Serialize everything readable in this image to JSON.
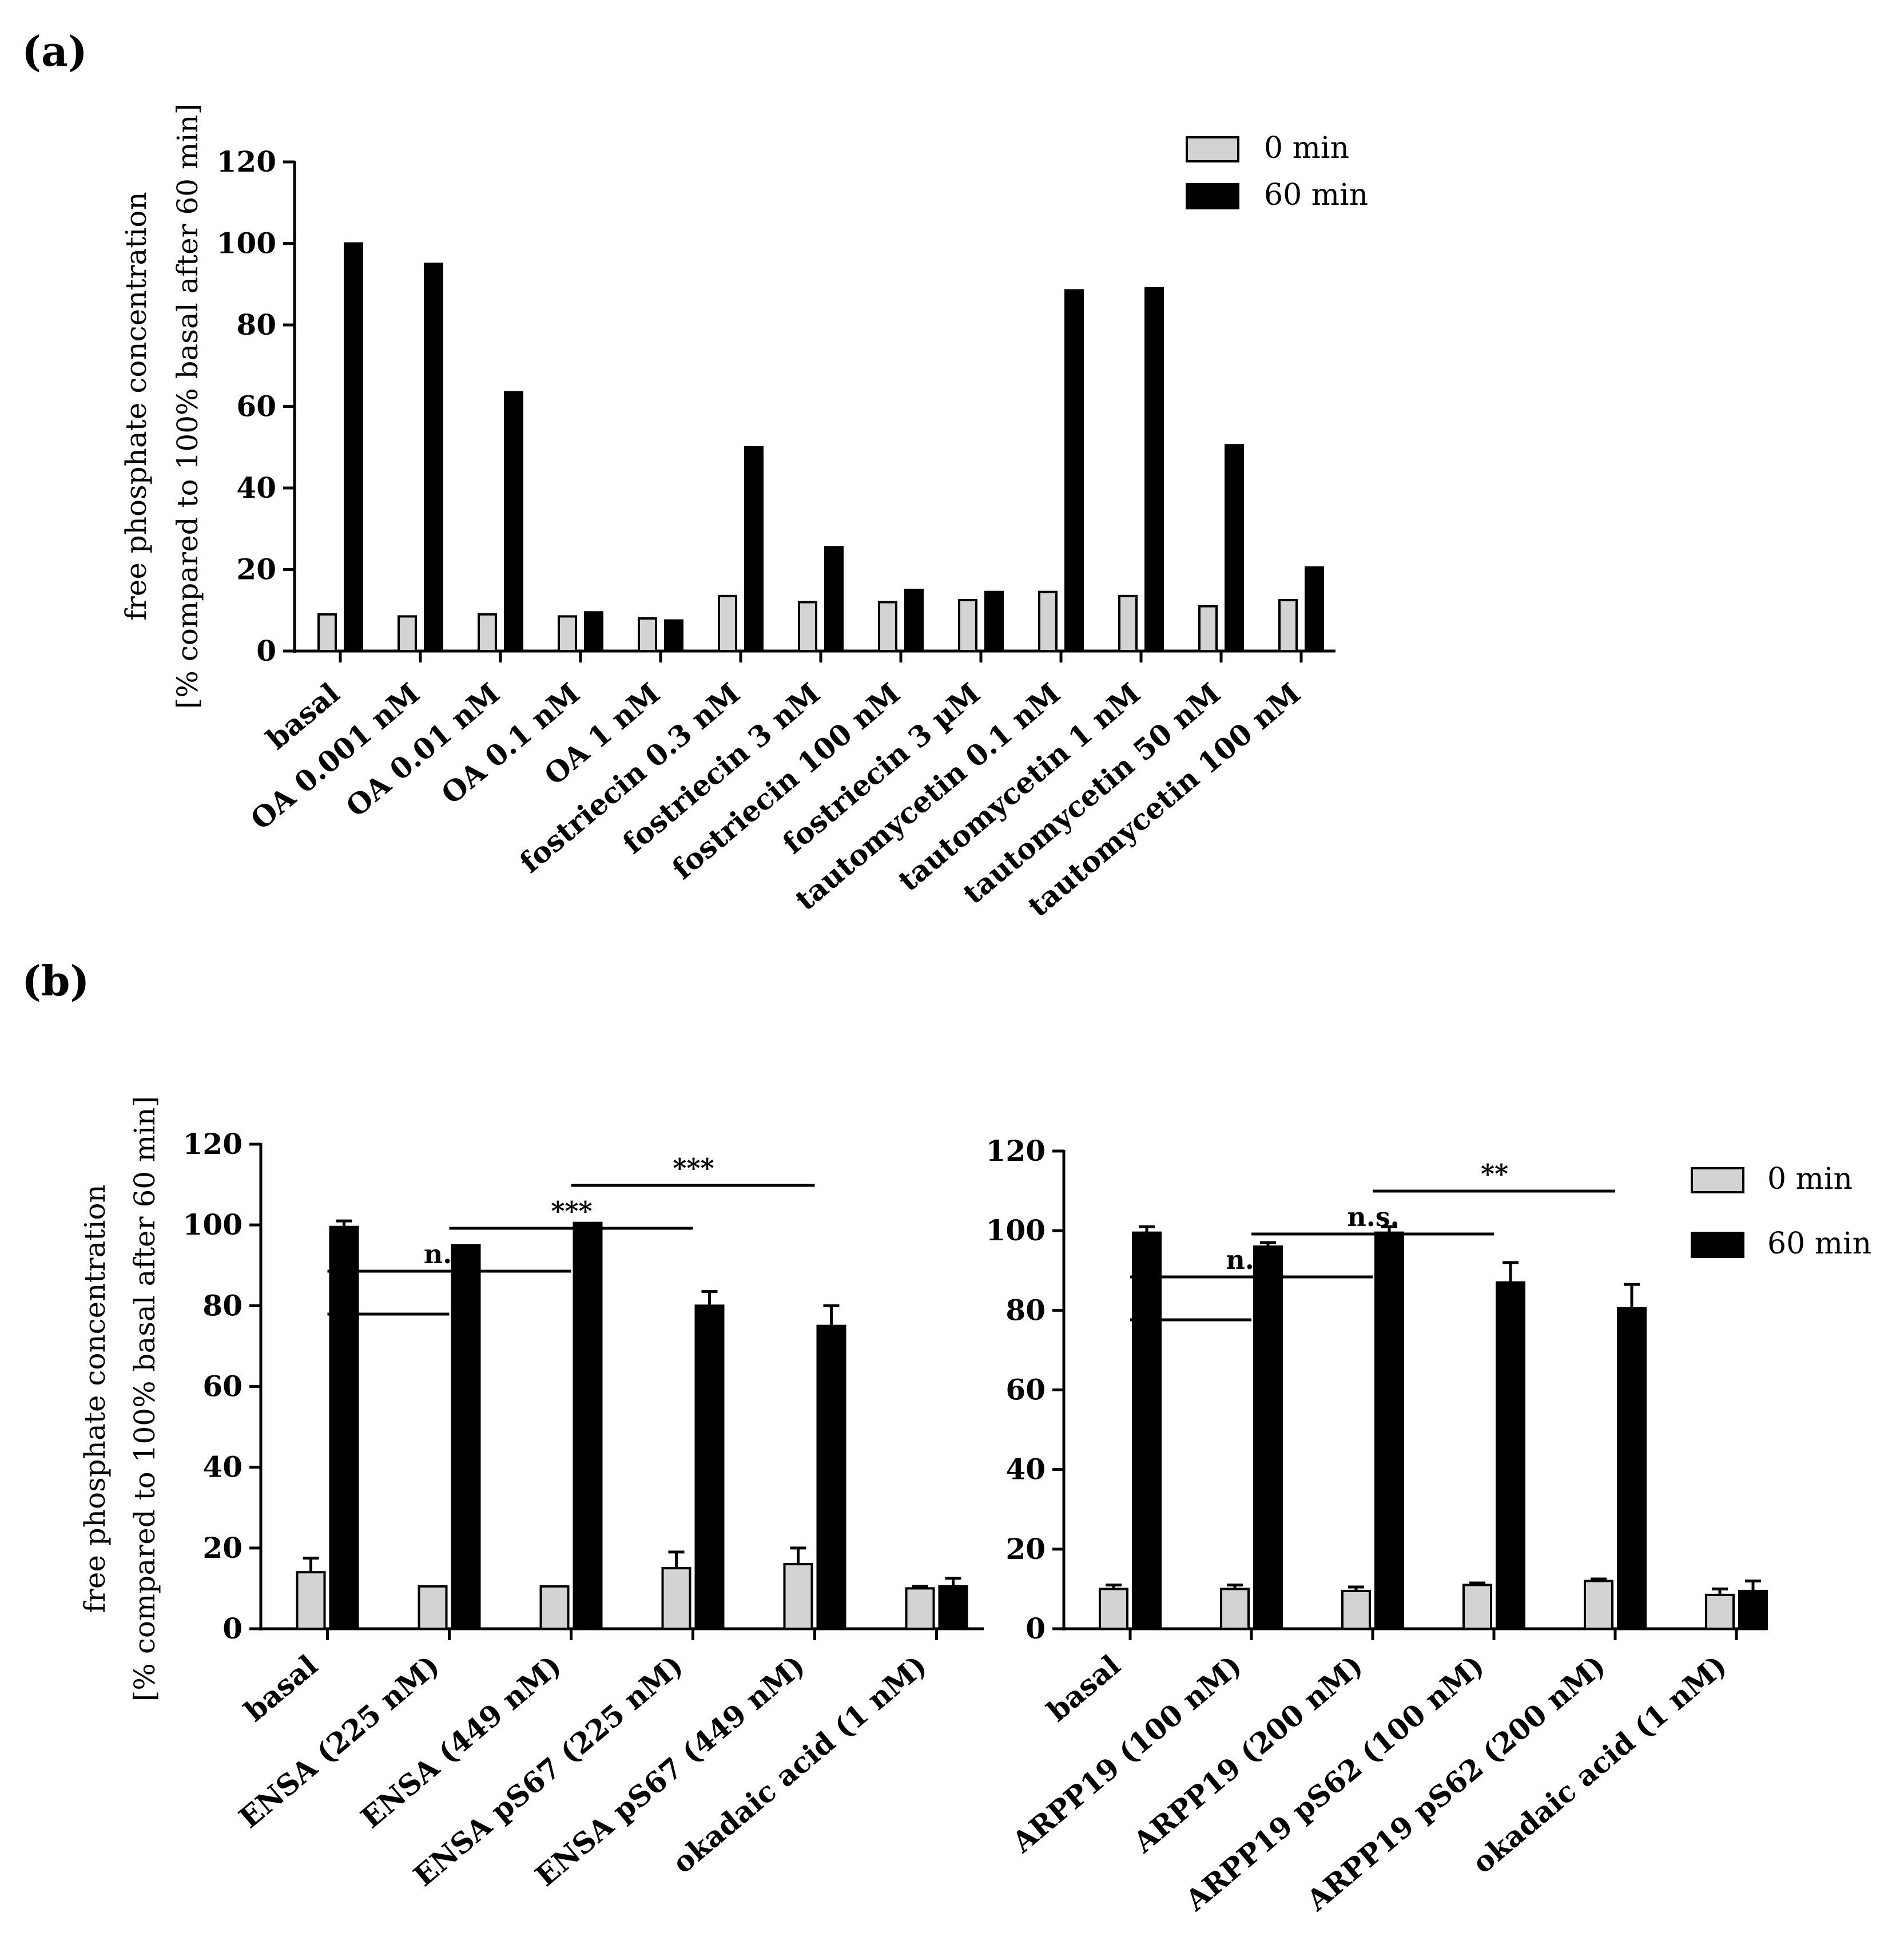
{
  "panels": {
    "a": "(a)",
    "b": "(b)"
  },
  "colors": {
    "zero_min": "#d3d3d3",
    "sixty_min": "#000000"
  },
  "chart_data": [
    {
      "id": "a",
      "type": "bar",
      "ylabel": [
        "free phosphate concentration",
        "[% compared to 100% basal after 60 min]"
      ],
      "ylim": [
        0,
        120
      ],
      "yticks": [
        0,
        20,
        40,
        60,
        80,
        100,
        120
      ],
      "legend": {
        "position": "top-right",
        "entries": [
          "0 min",
          "60 min"
        ]
      },
      "categories": [
        "basal",
        "OA 0.001 nM",
        "OA 0.01 nM",
        "OA 0.1 nM",
        "OA 1 nM",
        "fostriecin 0.3 nM",
        "fostriecin 3 nM",
        "fostriecin 100 nM",
        "fostriecin 3 µM",
        "tautomycetin 0.1 nM",
        "tautomycetin 1 nM",
        "tautomycetin 50 nM",
        "tautomycetin 100 nM"
      ],
      "series": [
        {
          "name": "0 min",
          "values": [
            9,
            8.5,
            9,
            8.5,
            8,
            13.5,
            12,
            12,
            12.5,
            14.5,
            13.5,
            11,
            12.5
          ]
        },
        {
          "name": "60 min",
          "values": [
            100,
            95,
            63.5,
            9.5,
            7.5,
            50,
            25.5,
            15,
            14.5,
            88.5,
            89,
            50.5,
            20.5
          ]
        }
      ]
    },
    {
      "id": "b-left",
      "type": "bar",
      "ylabel": [
        "free phosphate concentration",
        "[% compared to 100% basal after 60 min]"
      ],
      "ylim": [
        0,
        120
      ],
      "yticks": [
        0,
        20,
        40,
        60,
        80,
        100,
        120
      ],
      "categories": [
        "basal",
        "ENSA (225 nM)",
        "ENSA (449 nM)",
        "ENSA pS67 (225 nM)",
        "ENSA pS67 (449 nM)",
        "okadaic acid (1 nM)"
      ],
      "series": [
        {
          "name": "0 min",
          "values": [
            14,
            10.5,
            10.5,
            15,
            16,
            10
          ],
          "errors": [
            3.5,
            0,
            0,
            4,
            4,
            0.5
          ]
        },
        {
          "name": "60 min",
          "values": [
            99.5,
            95,
            100.5,
            80,
            75,
            10.5
          ],
          "errors": [
            1.5,
            0,
            0,
            3.5,
            5,
            2
          ]
        }
      ],
      "significance": [
        {
          "from": 0,
          "to": 1,
          "label": "",
          "level": 0
        },
        {
          "from": 0,
          "to": 2,
          "label": "n.s.",
          "level": 1
        },
        {
          "from": 1,
          "to": 3,
          "label": "***",
          "level": 2
        },
        {
          "from": 2,
          "to": 4,
          "label": "***",
          "level": 3
        }
      ]
    },
    {
      "id": "b-right",
      "type": "bar",
      "ylim": [
        0,
        120
      ],
      "yticks": [
        0,
        20,
        40,
        60,
        80,
        100,
        120
      ],
      "legend": {
        "position": "top-right",
        "entries": [
          "0 min",
          "60 min"
        ]
      },
      "categories": [
        "basal",
        "ARPP19 (100 nM)",
        "ARPP19 (200 nM)",
        "ARPP19 pS62 (100 nM)",
        "ARPP19 pS62 (200 nM)",
        "okadaic acid (1 nM)"
      ],
      "series": [
        {
          "name": "0 min",
          "values": [
            10,
            10,
            9.5,
            11,
            12,
            8.5
          ],
          "errors": [
            1,
            1,
            1,
            0.5,
            0.5,
            1.5
          ]
        },
        {
          "name": "60 min",
          "values": [
            99.5,
            96,
            99.5,
            87,
            80.5,
            9.5
          ],
          "errors": [
            1.5,
            1,
            1.5,
            5,
            6,
            2.5
          ]
        }
      ],
      "significance": [
        {
          "from": 0,
          "to": 1,
          "label": "",
          "level": 0
        },
        {
          "from": 0,
          "to": 2,
          "label": "n.s.",
          "level": 1
        },
        {
          "from": 1,
          "to": 3,
          "label": "n.s.",
          "level": 2
        },
        {
          "from": 2,
          "to": 4,
          "label": "**",
          "level": 3
        }
      ]
    }
  ]
}
